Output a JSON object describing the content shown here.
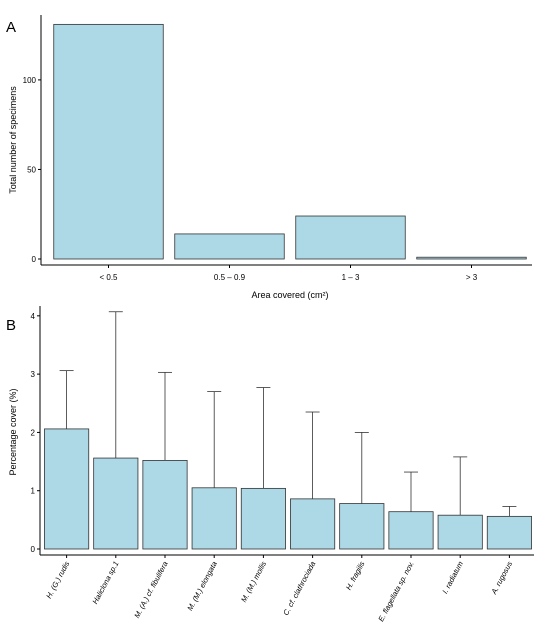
{
  "chart_data": [
    {
      "panel": "A",
      "type": "bar",
      "xlabel": "Area covered (cm²)",
      "ylabel": "Total number of specimens",
      "categories": [
        "< 0.5",
        "0.5 – 0.9",
        "1 – 3",
        "> 3"
      ],
      "values": [
        131,
        14,
        24,
        1
      ],
      "yticks": [
        0,
        50,
        100
      ],
      "ylim": [
        0,
        134
      ],
      "grid": false,
      "colors": {
        "bar": "#add8e6",
        "outline": "#333333"
      }
    },
    {
      "panel": "B",
      "type": "bar",
      "xlabel": "",
      "ylabel": "Percentage cover (%)",
      "categories": [
        "H. (G.) rudis",
        "Haliclona sp.1",
        "M. (A.) cf. fibulifera",
        "M. (M.) elongata",
        "M. (M.) mollis",
        "C. cf. clathrociada",
        "H. fragilis",
        "E. flagellata sp. nov.",
        "I. radiatum",
        "A. rugosus"
      ],
      "values": [
        2.06,
        1.56,
        1.52,
        1.05,
        1.04,
        0.86,
        0.78,
        0.64,
        0.58,
        0.56
      ],
      "error_upper": [
        3.06,
        4.07,
        3.03,
        2.7,
        2.77,
        2.35,
        2.0,
        1.32,
        1.58,
        0.73
      ],
      "yticks": [
        0,
        1,
        2,
        3,
        4
      ],
      "ylim": [
        0,
        4.1
      ],
      "grid": false,
      "colors": {
        "bar": "#add8e6",
        "outline": "#333333"
      }
    }
  ]
}
